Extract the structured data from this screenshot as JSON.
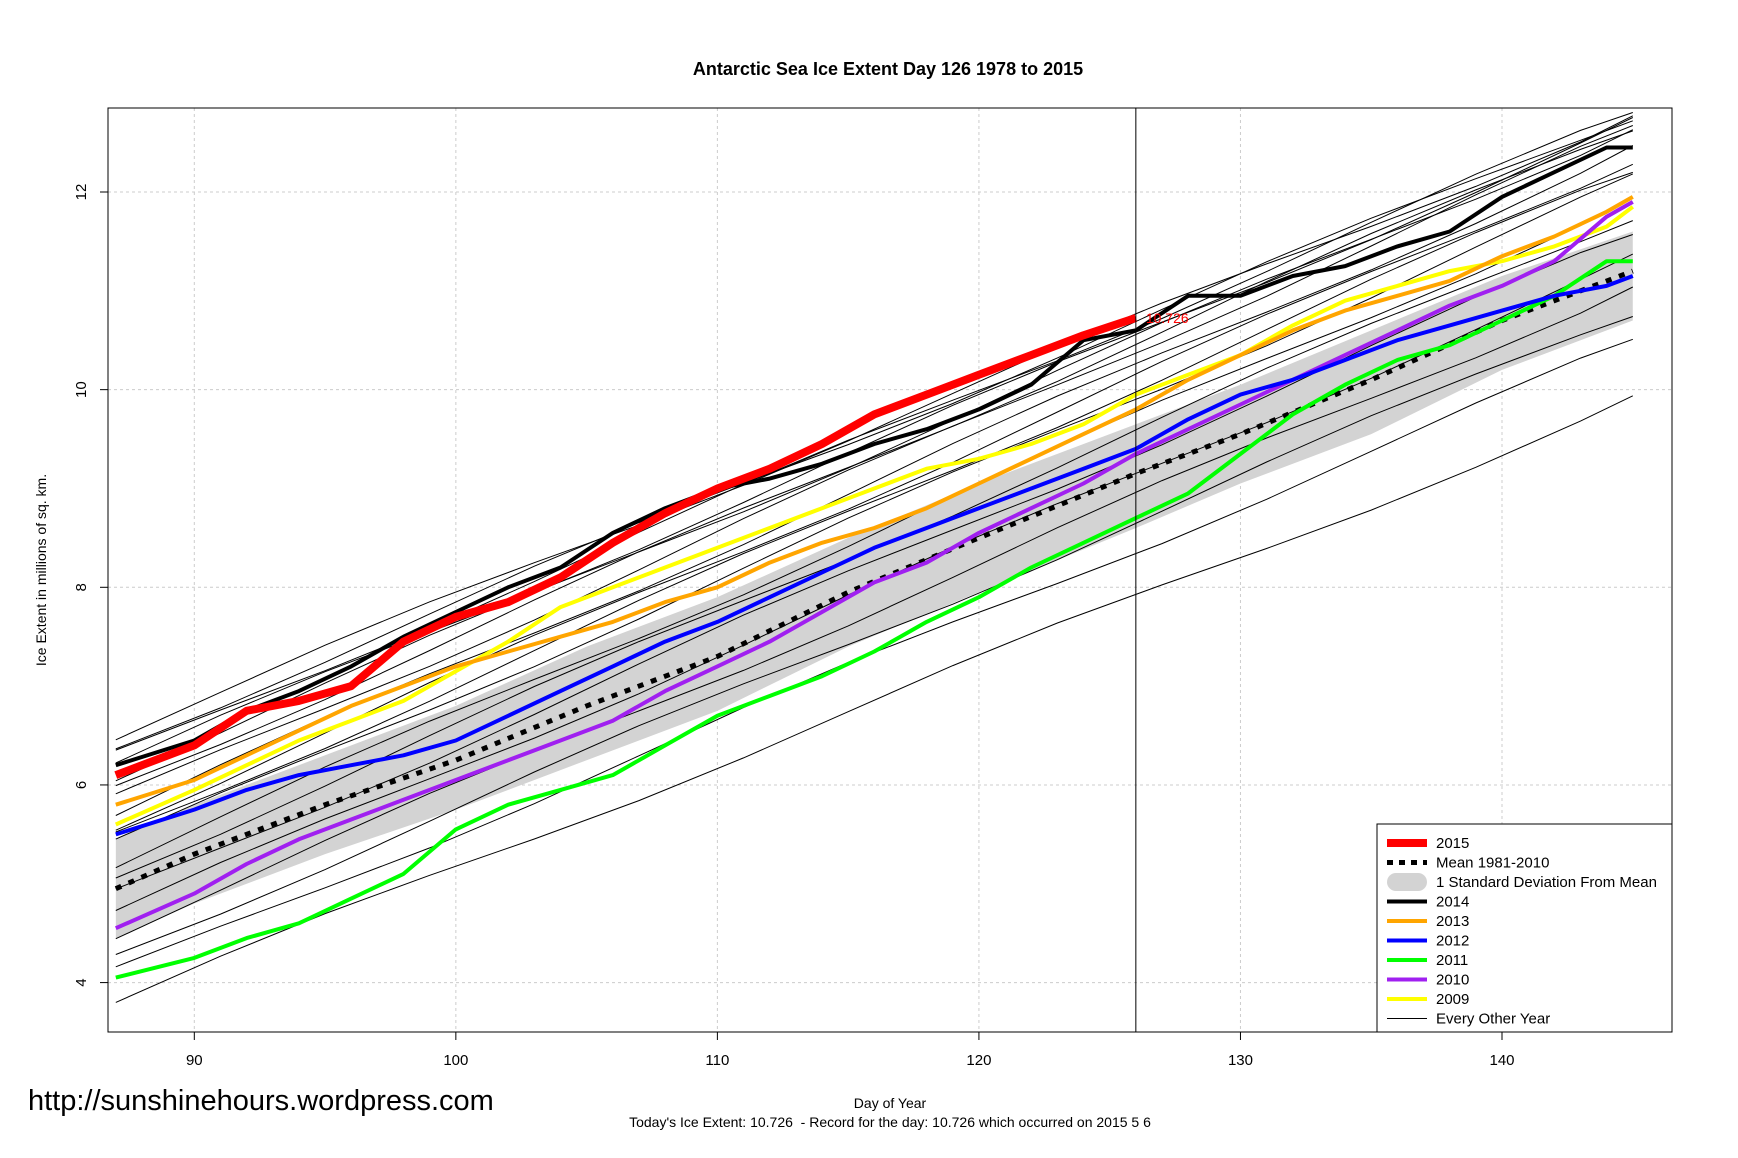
{
  "site_url": "http://sunshinehours.wordpress.com",
  "chart_data": {
    "type": "line",
    "title": "Antarctic Sea Ice Extent Day 126 1978 to 2015",
    "xlabel": "Day of Year",
    "ylabel": "Ice Extent in millions of sq. km.",
    "subtitle": "Today's Ice Extent: 10.726  - Record for the day: 10.726 which occurred on 2015 5 6",
    "xlim": [
      86.7,
      146.5
    ],
    "ylim": [
      3.5,
      12.85
    ],
    "xticks": [
      90,
      100,
      110,
      120,
      130,
      140
    ],
    "yticks": [
      4,
      6,
      8,
      10,
      12
    ],
    "grid": true,
    "legend_position": "bottom-right",
    "current_day": 126,
    "current_value_label": "10.726",
    "legend": [
      {
        "label": "2015",
        "color": "#ff0000",
        "style": "thick"
      },
      {
        "label": "Mean 1981-2010",
        "color": "#000000",
        "style": "dashed"
      },
      {
        "label": "1 Standard Deviation From Mean",
        "color": "#d3d3d3",
        "style": "band"
      },
      {
        "label": "2014",
        "color": "#000000",
        "style": "solid"
      },
      {
        "label": "2013",
        "color": "#ffa500",
        "style": "solid"
      },
      {
        "label": "2012",
        "color": "#0000ff",
        "style": "solid"
      },
      {
        "label": "2011",
        "color": "#00ff00",
        "style": "solid"
      },
      {
        "label": "2010",
        "color": "#a020f0",
        "style": "solid"
      },
      {
        "label": "2009",
        "color": "#ffff00",
        "style": "solid"
      },
      {
        "label": "Every Other Year",
        "color": "#000000",
        "style": "thin"
      }
    ],
    "x": [
      87,
      90,
      95,
      100,
      105,
      110,
      115,
      120,
      126,
      130,
      135,
      140,
      145
    ],
    "mean": [
      4.95,
      5.3,
      5.8,
      6.25,
      6.8,
      7.3,
      7.95,
      8.5,
      9.15,
      9.55,
      10.1,
      10.7,
      11.2
    ],
    "sd_upper": [
      5.45,
      5.8,
      6.3,
      6.8,
      7.4,
      7.9,
      8.5,
      9.05,
      9.65,
      10.05,
      10.6,
      11.15,
      11.6
    ],
    "sd_lower": [
      4.45,
      4.8,
      5.3,
      5.75,
      6.25,
      6.75,
      7.4,
      7.95,
      8.6,
      9.05,
      9.55,
      10.2,
      10.7
    ],
    "series": [
      {
        "name": "2015",
        "color": "#ff0000",
        "width": 8,
        "x": [
          87,
          90,
          92,
          94,
          96,
          98,
          100,
          102,
          104,
          106,
          108,
          110,
          112,
          114,
          116,
          118,
          120,
          122,
          124,
          126
        ],
        "values": [
          6.1,
          6.4,
          6.75,
          6.85,
          7.0,
          7.45,
          7.7,
          7.85,
          8.1,
          8.45,
          8.75,
          9.0,
          9.2,
          9.45,
          9.75,
          9.95,
          10.15,
          10.35,
          10.55,
          10.726
        ]
      },
      {
        "name": "2014",
        "color": "#000000",
        "width": 4,
        "x": [
          87,
          90,
          92,
          94,
          96,
          98,
          100,
          102,
          104,
          106,
          108,
          110,
          112,
          114,
          116,
          118,
          120,
          122,
          124,
          126,
          128,
          130,
          132,
          134,
          136,
          138,
          140,
          142,
          144,
          145
        ],
        "values": [
          6.2,
          6.45,
          6.75,
          6.95,
          7.2,
          7.5,
          7.75,
          8.0,
          8.2,
          8.55,
          8.8,
          9.0,
          9.1,
          9.25,
          9.45,
          9.6,
          9.8,
          10.05,
          10.5,
          10.6,
          10.95,
          10.95,
          11.15,
          11.25,
          11.45,
          11.6,
          11.95,
          12.2,
          12.45,
          12.45
        ]
      },
      {
        "name": "2013",
        "color": "#ffa500",
        "width": 4,
        "x": [
          87,
          90,
          92,
          94,
          96,
          98,
          100,
          102,
          104,
          106,
          108,
          110,
          112,
          114,
          116,
          118,
          120,
          122,
          124,
          126,
          128,
          130,
          132,
          134,
          136,
          138,
          140,
          142,
          144,
          145
        ],
        "values": [
          5.8,
          6.05,
          6.3,
          6.55,
          6.8,
          7.0,
          7.2,
          7.35,
          7.5,
          7.65,
          7.85,
          8.0,
          8.25,
          8.45,
          8.6,
          8.8,
          9.05,
          9.3,
          9.55,
          9.8,
          10.1,
          10.35,
          10.6,
          10.8,
          10.95,
          11.1,
          11.35,
          11.55,
          11.8,
          11.95
        ]
      },
      {
        "name": "2012",
        "color": "#0000ff",
        "width": 4,
        "x": [
          87,
          90,
          92,
          94,
          96,
          98,
          100,
          102,
          104,
          106,
          108,
          110,
          112,
          114,
          116,
          118,
          120,
          122,
          124,
          126,
          128,
          130,
          132,
          134,
          136,
          138,
          140,
          142,
          144,
          145
        ],
        "values": [
          5.5,
          5.75,
          5.95,
          6.1,
          6.2,
          6.3,
          6.45,
          6.7,
          6.95,
          7.2,
          7.45,
          7.65,
          7.9,
          8.15,
          8.4,
          8.6,
          8.8,
          9.0,
          9.2,
          9.4,
          9.7,
          9.95,
          10.1,
          10.3,
          10.5,
          10.65,
          10.8,
          10.95,
          11.05,
          11.15
        ]
      },
      {
        "name": "2011",
        "color": "#00ff00",
        "width": 4,
        "x": [
          87,
          90,
          92,
          94,
          96,
          98,
          100,
          102,
          104,
          106,
          108,
          110,
          112,
          114,
          116,
          118,
          120,
          122,
          124,
          126,
          128,
          130,
          132,
          134,
          136,
          138,
          140,
          142,
          144,
          145
        ],
        "values": [
          4.05,
          4.25,
          4.45,
          4.6,
          4.85,
          5.1,
          5.55,
          5.8,
          5.95,
          6.1,
          6.4,
          6.7,
          6.9,
          7.1,
          7.35,
          7.65,
          7.9,
          8.2,
          8.45,
          8.7,
          8.95,
          9.35,
          9.75,
          10.05,
          10.3,
          10.45,
          10.7,
          10.95,
          11.3,
          11.3
        ]
      },
      {
        "name": "2010",
        "color": "#a020f0",
        "width": 4,
        "x": [
          87,
          90,
          92,
          94,
          96,
          98,
          100,
          102,
          104,
          106,
          108,
          110,
          112,
          114,
          116,
          118,
          120,
          122,
          124,
          126,
          128,
          130,
          132,
          134,
          136,
          138,
          140,
          142,
          144,
          145
        ],
        "values": [
          4.55,
          4.9,
          5.2,
          5.45,
          5.65,
          5.85,
          6.05,
          6.25,
          6.45,
          6.65,
          6.95,
          7.2,
          7.45,
          7.75,
          8.05,
          8.25,
          8.55,
          8.8,
          9.05,
          9.35,
          9.6,
          9.85,
          10.1,
          10.35,
          10.6,
          10.85,
          11.05,
          11.3,
          11.75,
          11.9
        ]
      },
      {
        "name": "2009",
        "color": "#ffff00",
        "width": 4,
        "x": [
          87,
          90,
          92,
          94,
          96,
          98,
          100,
          102,
          104,
          106,
          108,
          110,
          112,
          114,
          116,
          118,
          120,
          122,
          124,
          126,
          128,
          130,
          132,
          134,
          136,
          138,
          140,
          142,
          144,
          145
        ],
        "values": [
          5.6,
          5.95,
          6.2,
          6.45,
          6.65,
          6.85,
          7.15,
          7.45,
          7.8,
          8.0,
          8.2,
          8.4,
          8.6,
          8.8,
          9.0,
          9.2,
          9.3,
          9.45,
          9.65,
          9.95,
          10.15,
          10.35,
          10.65,
          10.9,
          11.05,
          11.2,
          11.3,
          11.45,
          11.65,
          11.85
        ]
      }
    ],
    "other_years": {
      "x": [
        87,
        91,
        95,
        99,
        103,
        107,
        111,
        115,
        119,
        123,
        127,
        131,
        135,
        139,
        143,
        145
      ],
      "start_values": [
        3.8,
        4.1,
        4.3,
        4.5,
        4.7,
        4.9,
        5.1,
        5.2,
        5.4,
        5.5,
        5.6,
        5.7,
        5.85,
        6.0,
        6.1,
        6.2,
        6.3,
        6.4,
        6.5
      ],
      "slopes": [
        0.105,
        0.11,
        0.112,
        0.113,
        0.114,
        0.115,
        0.115,
        0.116,
        0.116,
        0.116,
        0.116,
        0.116,
        0.117,
        0.115,
        0.113,
        0.112,
        0.112,
        0.11,
        0.108
      ]
    }
  }
}
